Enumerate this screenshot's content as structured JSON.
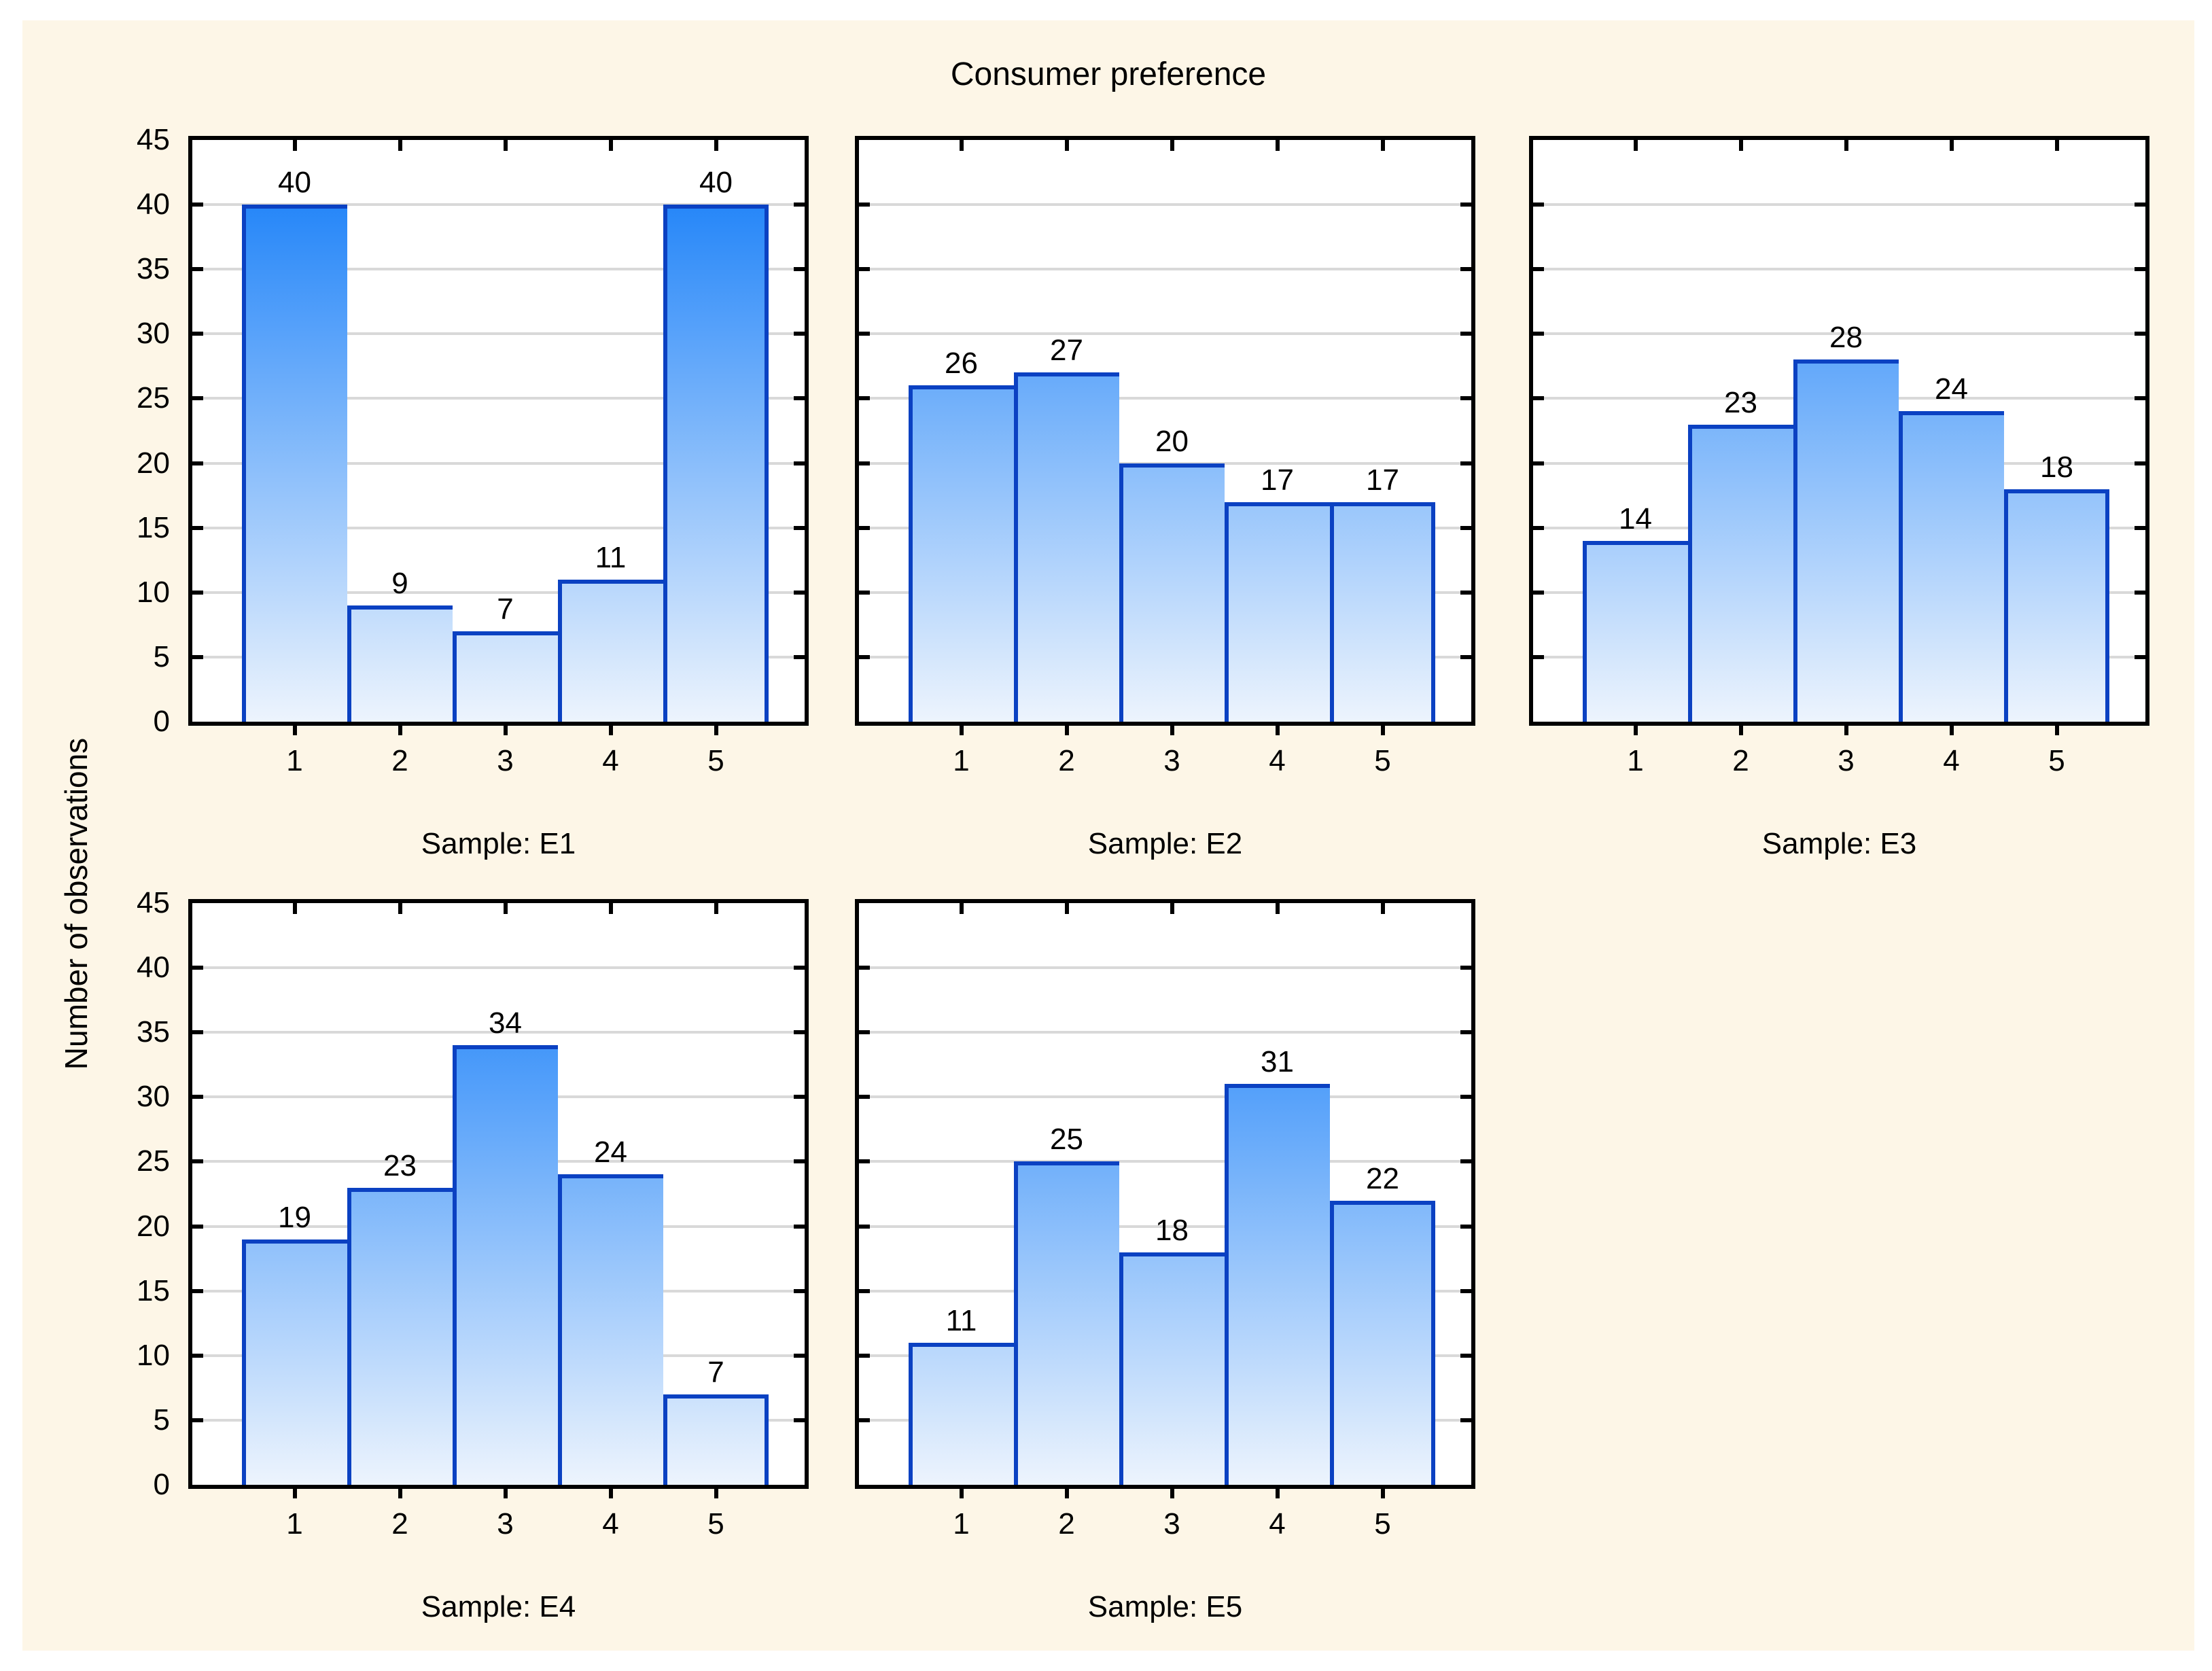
{
  "title": "Consumer preference",
  "y_axis_title": "Number of observations",
  "chart_data": {
    "type": "bar",
    "title": "Consumer preference",
    "ylabel": "Number of observations",
    "categories": [
      "1",
      "2",
      "3",
      "4",
      "5"
    ],
    "ylim": [
      0,
      45
    ],
    "ytick_labels": [
      "0",
      "5",
      "10",
      "15",
      "20",
      "25",
      "30",
      "35",
      "40",
      "45"
    ],
    "grid": true,
    "legend": "none",
    "panels": [
      {
        "caption": "Sample: E1",
        "values": [
          40,
          9,
          7,
          11,
          40
        ]
      },
      {
        "caption": "Sample: E2",
        "values": [
          26,
          27,
          20,
          17,
          17
        ]
      },
      {
        "caption": "Sample: E3",
        "values": [
          14,
          23,
          28,
          24,
          18
        ]
      },
      {
        "caption": "Sample: E4",
        "values": [
          19,
          23,
          34,
          24,
          7
        ]
      },
      {
        "caption": "Sample: E5",
        "values": [
          11,
          25,
          18,
          31,
          22
        ]
      }
    ],
    "colors": {
      "figure_background": "#fdf6e7",
      "plot_background": "#ffffff",
      "plot_border": "#000000",
      "gridline": "#d9d9d9",
      "bar_border": "#0b41c2",
      "bar_gradient_top": "#0d79f8",
      "bar_gradient_bottom": "#edf4fd",
      "text": "#000000"
    }
  }
}
